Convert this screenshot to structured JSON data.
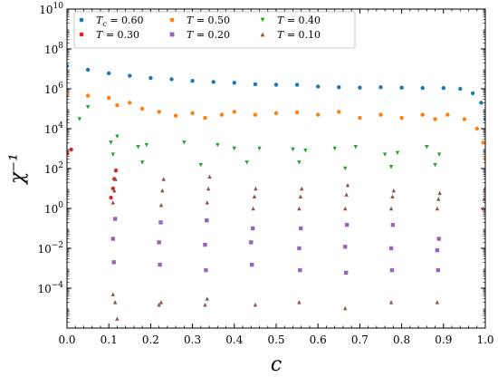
{
  "chart_data": {
    "type": "scatter",
    "xlabel": "c",
    "ylabel": "χ⁻¹",
    "xlim": [
      0.0,
      1.0
    ],
    "ylim_log10": [
      -6,
      10
    ],
    "yscale": "log",
    "x_ticks": [
      "0.0",
      "0.1",
      "0.2",
      "0.3",
      "0.4",
      "0.5",
      "0.6",
      "0.7",
      "0.8",
      "0.9",
      "1.0"
    ],
    "y_tick_exponents": [
      "10",
      "8",
      "6",
      "4",
      "2",
      "0",
      "-2",
      "-4"
    ],
    "legend_position": "top-left",
    "legend_columns": 3,
    "series": [
      {
        "name": "T_c = 0.60",
        "label_var": "T",
        "label_sub": "c",
        "label_val": " = 0.60",
        "color": "#1f77b4",
        "marker": "circle",
        "points": [
          [
            0.0,
            14000000.0
          ],
          [
            0.05,
            9000000.0
          ],
          [
            0.1,
            6000000.0
          ],
          [
            0.15,
            4500000.0
          ],
          [
            0.2,
            3500000.0
          ],
          [
            0.25,
            3000000.0
          ],
          [
            0.3,
            2500000.0
          ],
          [
            0.35,
            2200000.0
          ],
          [
            0.4,
            2000000.0
          ],
          [
            0.45,
            1700000.0
          ],
          [
            0.5,
            1600000.0
          ],
          [
            0.55,
            1600000.0
          ],
          [
            0.6,
            1300000.0
          ],
          [
            0.65,
            1200000.0
          ],
          [
            0.7,
            1150000.0
          ],
          [
            0.75,
            1200000.0
          ],
          [
            0.8,
            1150000.0
          ],
          [
            0.85,
            1100000.0
          ],
          [
            0.9,
            1100000.0
          ],
          [
            0.94,
            1000000.0
          ],
          [
            0.97,
            600000.0
          ],
          [
            0.99,
            200000.0
          ],
          [
            1.0,
            30000.0
          ]
        ]
      },
      {
        "name": "T = 0.50",
        "label_var": "T",
        "label_sub": "",
        "label_val": " = 0.50",
        "color": "#ff7f0e",
        "marker": "circle",
        "points": [
          [
            0.0,
            500000.0
          ],
          [
            0.05,
            450000.0
          ],
          [
            0.1,
            350000.0
          ],
          [
            0.12,
            150000.0
          ],
          [
            0.15,
            200000.0
          ],
          [
            0.18,
            100000.0
          ],
          [
            0.22,
            70000.0
          ],
          [
            0.26,
            45000.0
          ],
          [
            0.3,
            60000.0
          ],
          [
            0.33,
            35000.0
          ],
          [
            0.37,
            50000.0
          ],
          [
            0.4,
            70000.0
          ],
          [
            0.45,
            50000.0
          ],
          [
            0.5,
            60000.0
          ],
          [
            0.55,
            65000.0
          ],
          [
            0.6,
            50000.0
          ],
          [
            0.65,
            70000.0
          ],
          [
            0.7,
            35000.0
          ],
          [
            0.75,
            50000.0
          ],
          [
            0.8,
            35000.0
          ],
          [
            0.85,
            50000.0
          ],
          [
            0.88,
            30000.0
          ],
          [
            0.91,
            50000.0
          ],
          [
            0.95,
            30000.0
          ],
          [
            0.98,
            10000.0
          ],
          [
            0.995,
            2000.0
          ],
          [
            1.0,
            300.0
          ]
        ]
      },
      {
        "name": "T = 0.40",
        "label_var": "T",
        "label_sub": "",
        "label_val": " = 0.40",
        "color": "#2ca02c",
        "marker": "triangle-down",
        "points": [
          [
            0.0,
            25000.0
          ],
          [
            0.03,
            30000.0
          ],
          [
            0.05,
            120000.0
          ],
          [
            0.105,
            2000.0
          ],
          [
            0.11,
            500.0
          ],
          [
            0.12,
            4000.0
          ],
          [
            0.17,
            1200.0
          ],
          [
            0.18,
            200.0
          ],
          [
            0.19,
            1500.0
          ],
          [
            0.28,
            2000.0
          ],
          [
            0.32,
            150.0
          ],
          [
            0.36,
            1500.0
          ],
          [
            0.4,
            1000.0
          ],
          [
            0.43,
            200.0
          ],
          [
            0.46,
            1000.0
          ],
          [
            0.54,
            900.0
          ],
          [
            0.555,
            200.0
          ],
          [
            0.57,
            800.0
          ],
          [
            0.64,
            1000.0
          ],
          [
            0.665,
            100.0
          ],
          [
            0.69,
            1200.0
          ],
          [
            0.76,
            500.0
          ],
          [
            0.775,
            120.0
          ],
          [
            0.79,
            600.0
          ],
          [
            0.86,
            1200.0
          ],
          [
            0.88,
            150.0
          ],
          [
            0.89,
            500.0
          ]
        ]
      },
      {
        "name": "T = 0.30",
        "label_var": "T",
        "label_sub": "",
        "label_val": " = 0.30",
        "color": "#d62728",
        "marker": "circle",
        "points": [
          [
            0.0,
            600.0
          ],
          [
            0.01,
            900.0
          ],
          [
            0.105,
            3.5
          ],
          [
            0.11,
            10
          ],
          [
            0.113,
            30
          ],
          [
            0.117,
            80
          ]
        ]
      },
      {
        "name": "T = 0.20",
        "label_var": "T",
        "label_sub": "",
        "label_val": " = 0.20",
        "color": "#9467bd",
        "marker": "square",
        "points": [
          [
            0.11,
            0.03
          ],
          [
            0.112,
            0.002
          ],
          [
            0.115,
            0.3
          ],
          [
            0.22,
            0.02
          ],
          [
            0.222,
            0.0015
          ],
          [
            0.224,
            0.2
          ],
          [
            0.33,
            0.015
          ],
          [
            0.332,
            0.0008
          ],
          [
            0.334,
            0.25
          ],
          [
            0.44,
            0.02
          ],
          [
            0.442,
            0.0015
          ],
          [
            0.444,
            0.1
          ],
          [
            0.555,
            0.01
          ],
          [
            0.557,
            0.0008
          ],
          [
            0.559,
            0.1
          ],
          [
            0.665,
            0.012
          ],
          [
            0.667,
            0.0006
          ],
          [
            0.669,
            0.15
          ],
          [
            0.775,
            0.01
          ],
          [
            0.777,
            0.0008
          ],
          [
            0.779,
            0.15
          ],
          [
            0.885,
            0.008
          ],
          [
            0.887,
            0.0008
          ],
          [
            0.889,
            0.03
          ]
        ]
      },
      {
        "name": "T = 0.10",
        "label_var": "T",
        "label_sub": "",
        "label_val": " = 0.10",
        "color": "#8c564b",
        "marker": "triangle-up",
        "points": [
          [
            0.11,
            2
          ],
          [
            0.113,
            8
          ],
          [
            0.116,
            30
          ],
          [
            0.11,
            5e-05
          ],
          [
            0.115,
            2e-05
          ],
          [
            0.12,
            3e-06
          ],
          [
            0.225,
            1.5
          ],
          [
            0.228,
            8
          ],
          [
            0.231,
            30
          ],
          [
            0.22,
            1.5e-05
          ],
          [
            0.225,
            2e-05
          ],
          [
            0.335,
            2
          ],
          [
            0.338,
            10
          ],
          [
            0.341,
            40
          ],
          [
            0.33,
            1.5e-05
          ],
          [
            0.335,
            3e-05
          ],
          [
            0.445,
            1
          ],
          [
            0.448,
            4
          ],
          [
            0.451,
            10
          ],
          [
            0.45,
            1.5e-05
          ],
          [
            0.555,
            1
          ],
          [
            0.558,
            4
          ],
          [
            0.561,
            10
          ],
          [
            0.555,
            2e-05
          ],
          [
            0.665,
            1
          ],
          [
            0.668,
            5
          ],
          [
            0.671,
            15
          ],
          [
            0.665,
            1e-05
          ],
          [
            0.775,
            1
          ],
          [
            0.778,
            4
          ],
          [
            0.781,
            8
          ],
          [
            0.775,
            2e-05
          ],
          [
            0.885,
            1
          ],
          [
            0.888,
            3
          ],
          [
            0.891,
            6
          ],
          [
            0.885,
            2e-05
          ],
          [
            0.995,
            1
          ],
          [
            0.997,
            3
          ],
          [
            0.999,
            10
          ]
        ]
      }
    ]
  }
}
